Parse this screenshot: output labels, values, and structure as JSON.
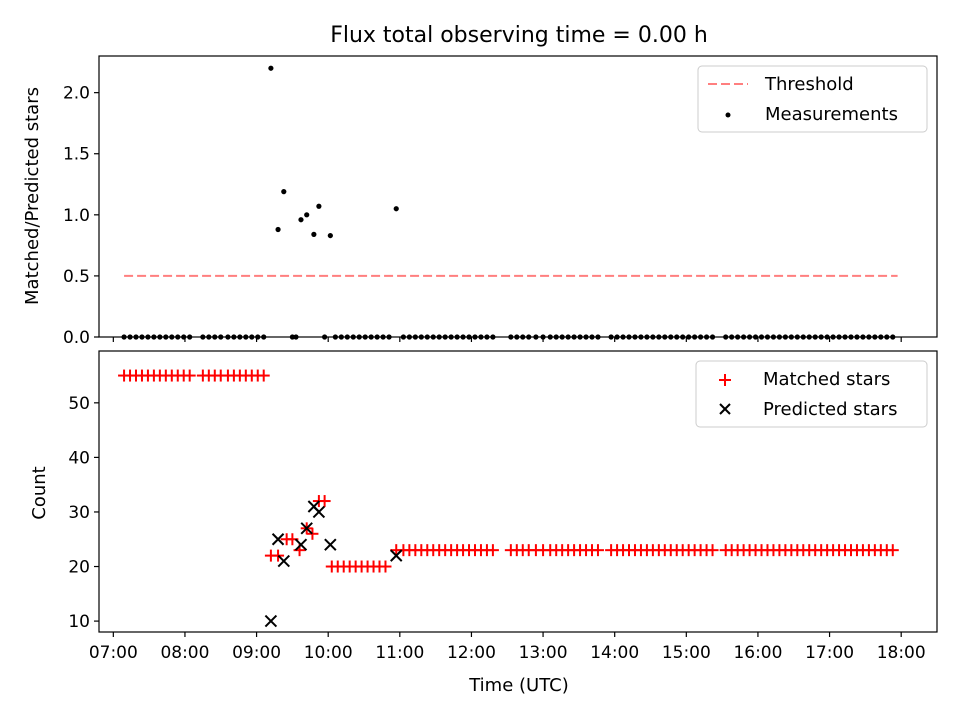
{
  "title": "Flux total observing time = 0.00 h",
  "chart_data": [
    {
      "type": "scatter",
      "ylabel": "Matched/Predicted stars",
      "xlabel": "",
      "xlim": [
        6.8,
        18.5
      ],
      "ylim": [
        0,
        2.3
      ],
      "yticks": [
        0.0,
        0.5,
        1.0,
        1.5,
        2.0
      ],
      "ytick_labels": [
        "0.0",
        "0.5",
        "1.0",
        "1.5",
        "2.0"
      ],
      "legend_position": "upper right",
      "threshold": {
        "name": "Threshold",
        "value": 0.5,
        "x_range": [
          7.15,
          17.95
        ],
        "color": "#ff7f7f",
        "style": "dashed"
      },
      "measurements": {
        "name": "Measurements",
        "color": "#000000",
        "zero_runs": [
          [
            7.15,
            8.1,
            0.0833
          ],
          [
            8.25,
            8.55,
            0.0833
          ],
          [
            8.6,
            9.15,
            0.0833
          ],
          [
            9.5,
            9.55,
            0.05
          ],
          [
            9.95,
            9.95,
            0.0833
          ],
          [
            10.1,
            10.85,
            0.0833
          ],
          [
            11.05,
            12.3,
            0.0833
          ],
          [
            12.55,
            12.8,
            0.0833
          ],
          [
            12.9,
            13.0,
            0.1
          ],
          [
            13.1,
            13.8,
            0.0833
          ],
          [
            13.95,
            15.4,
            0.0833
          ],
          [
            15.55,
            17.95,
            0.0833
          ]
        ],
        "points": [
          {
            "x": 9.2,
            "y": 2.2
          },
          {
            "x": 9.3,
            "y": 0.88
          },
          {
            "x": 9.38,
            "y": 1.19
          },
          {
            "x": 9.62,
            "y": 0.96
          },
          {
            "x": 9.7,
            "y": 1.0
          },
          {
            "x": 9.8,
            "y": 0.84
          },
          {
            "x": 9.87,
            "y": 1.07
          },
          {
            "x": 10.03,
            "y": 0.83
          },
          {
            "x": 10.95,
            "y": 1.05
          }
        ]
      }
    },
    {
      "type": "scatter",
      "ylabel": "Count",
      "xlabel": "Time (UTC)",
      "xlim": [
        6.8,
        18.5
      ],
      "ylim": [
        8,
        59.5
      ],
      "yticks": [
        10,
        20,
        30,
        40,
        50
      ],
      "ytick_labels": [
        "10",
        "20",
        "30",
        "40",
        "50"
      ],
      "xticks": [
        7,
        8,
        9,
        10,
        11,
        12,
        13,
        14,
        15,
        16,
        17,
        18
      ],
      "xtick_labels": [
        "07:00",
        "08:00",
        "09:00",
        "10:00",
        "11:00",
        "12:00",
        "13:00",
        "14:00",
        "15:00",
        "16:00",
        "17:00",
        "18:00"
      ],
      "legend_position": "upper right",
      "matched": {
        "name": "Matched stars",
        "color": "#ff0000",
        "runs": [
          [
            7.15,
            8.1,
            0.0833,
            55
          ],
          [
            8.25,
            8.55,
            0.0833,
            55
          ],
          [
            8.6,
            9.15,
            0.0833,
            55
          ],
          [
            10.05,
            10.85,
            0.0833,
            20
          ],
          [
            11.05,
            12.3,
            0.0833,
            23
          ],
          [
            12.55,
            12.8,
            0.0833,
            23
          ],
          [
            12.9,
            13.0,
            0.1,
            23
          ],
          [
            13.1,
            13.8,
            0.0833,
            23
          ],
          [
            13.95,
            15.4,
            0.0833,
            23
          ],
          [
            15.55,
            17.95,
            0.0833,
            23
          ]
        ],
        "points": [
          {
            "x": 9.2,
            "y": 22
          },
          {
            "x": 9.3,
            "y": 22
          },
          {
            "x": 9.42,
            "y": 25
          },
          {
            "x": 9.5,
            "y": 25
          },
          {
            "x": 9.6,
            "y": 23
          },
          {
            "x": 9.7,
            "y": 27
          },
          {
            "x": 9.78,
            "y": 26
          },
          {
            "x": 9.87,
            "y": 32
          },
          {
            "x": 9.95,
            "y": 32
          },
          {
            "x": 10.95,
            "y": 23
          }
        ]
      },
      "predicted": {
        "name": "Predicted stars",
        "color": "#000000",
        "points": [
          {
            "x": 9.2,
            "y": 10
          },
          {
            "x": 9.3,
            "y": 25
          },
          {
            "x": 9.38,
            "y": 21
          },
          {
            "x": 9.62,
            "y": 24
          },
          {
            "x": 9.7,
            "y": 27
          },
          {
            "x": 9.8,
            "y": 31
          },
          {
            "x": 9.87,
            "y": 30
          },
          {
            "x": 10.03,
            "y": 24
          },
          {
            "x": 10.95,
            "y": 22
          }
        ]
      }
    }
  ]
}
